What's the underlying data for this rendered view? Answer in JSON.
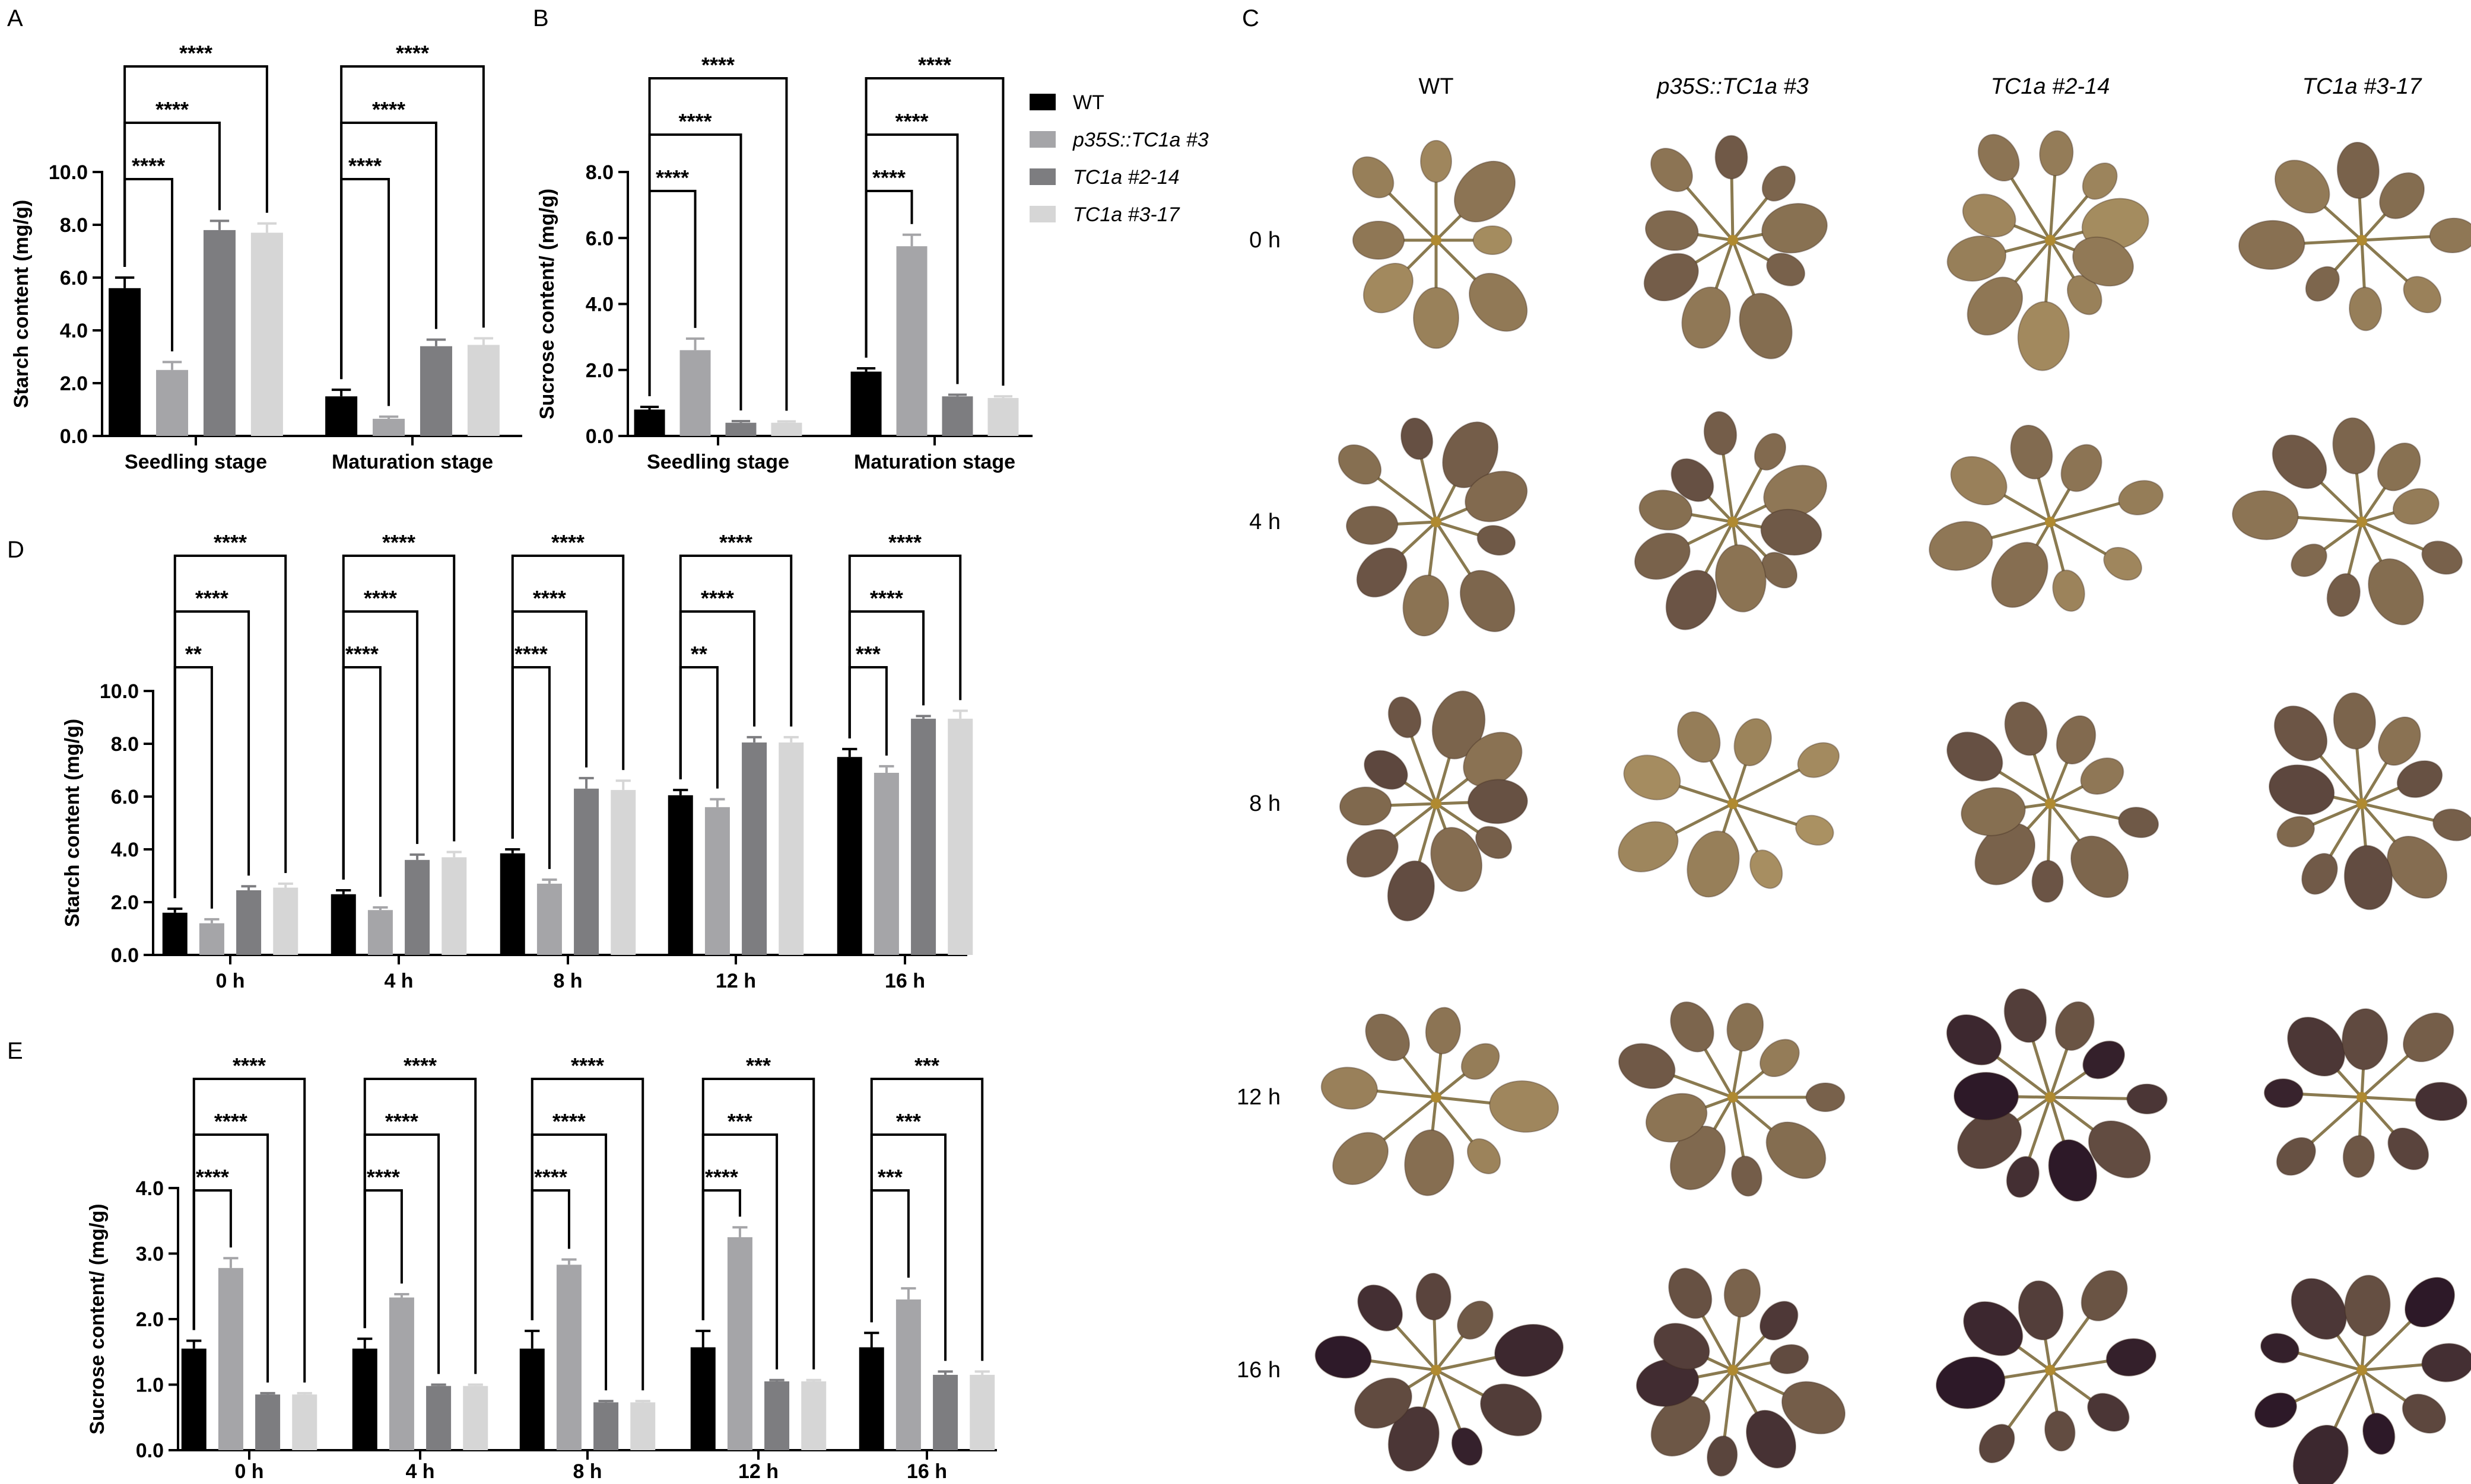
{
  "figure": {
    "legend": {
      "entries": [
        {
          "label": "WT",
          "color": "#000000",
          "italic": false
        },
        {
          "label": "p35S::TC1a #3",
          "color": "#a5a5a8",
          "italic": true
        },
        {
          "label": "TC1a #2-14",
          "color": "#7d7d80",
          "italic": true
        },
        {
          "label": "TC1a #3-17",
          "color": "#d6d6d6",
          "italic": true
        }
      ]
    },
    "panel_c": {
      "letter": "C",
      "columns": [
        "WT",
        "p35S::TC1a #3",
        "TC1a #2-14",
        "TC1a #3-17"
      ],
      "rows": [
        "0 h",
        "4 h",
        "8 h",
        "12 h",
        "16 h"
      ],
      "stain": [
        [
          0.3,
          0.45,
          0.3,
          0.4
        ],
        [
          0.5,
          0.5,
          0.35,
          0.45
        ],
        [
          0.55,
          0.25,
          0.5,
          0.55
        ],
        [
          0.35,
          0.45,
          0.85,
          0.75
        ],
        [
          0.8,
          0.7,
          0.85,
          0.9
        ]
      ]
    }
  },
  "chart_data": [
    {
      "id": "A",
      "letter": "A",
      "type": "bar",
      "ylabel": "Starch content (mg/g)",
      "ylim": [
        0,
        10
      ],
      "yticks": [
        "0.0",
        "2.0",
        "4.0",
        "6.0",
        "8.0",
        "10.0"
      ],
      "categories": [
        "Seedling stage",
        "Maturation stage"
      ],
      "series": [
        {
          "values": [
            5.6,
            1.5
          ],
          "errors": [
            0.4,
            0.25
          ]
        },
        {
          "values": [
            2.5,
            0.65
          ],
          "errors": [
            0.3,
            0.08
          ]
        },
        {
          "values": [
            7.8,
            3.4
          ],
          "errors": [
            0.35,
            0.25
          ]
        },
        {
          "values": [
            7.7,
            3.45
          ],
          "errors": [
            0.35,
            0.25
          ]
        }
      ],
      "significance": [
        {
          "category": 0,
          "target": 1,
          "label": "****"
        },
        {
          "category": 0,
          "target": 2,
          "label": "****"
        },
        {
          "category": 0,
          "target": 3,
          "label": "****"
        },
        {
          "category": 1,
          "target": 1,
          "label": "****"
        },
        {
          "category": 1,
          "target": 2,
          "label": "****"
        },
        {
          "category": 1,
          "target": 3,
          "label": "****"
        }
      ]
    },
    {
      "id": "B",
      "letter": "B",
      "type": "bar",
      "ylabel": "Sucrose content/ (mg/g)",
      "ylim": [
        0,
        8
      ],
      "yticks": [
        "0.0",
        "2.0",
        "4.0",
        "6.0",
        "8.0"
      ],
      "categories": [
        "Seedling stage",
        "Maturation stage"
      ],
      "series": [
        {
          "values": [
            0.8,
            1.95
          ],
          "errors": [
            0.08,
            0.1
          ]
        },
        {
          "values": [
            2.6,
            5.75
          ],
          "errors": [
            0.35,
            0.35
          ]
        },
        {
          "values": [
            0.4,
            1.2
          ],
          "errors": [
            0.05,
            0.05
          ]
        },
        {
          "values": [
            0.4,
            1.15
          ],
          "errors": [
            0.04,
            0.05
          ]
        }
      ],
      "significance": [
        {
          "category": 0,
          "target": 1,
          "label": "****"
        },
        {
          "category": 0,
          "target": 2,
          "label": "****"
        },
        {
          "category": 0,
          "target": 3,
          "label": "****"
        },
        {
          "category": 1,
          "target": 1,
          "label": "****"
        },
        {
          "category": 1,
          "target": 2,
          "label": "****"
        },
        {
          "category": 1,
          "target": 3,
          "label": "****"
        }
      ]
    },
    {
      "id": "D",
      "letter": "D",
      "type": "bar",
      "ylabel": "Starch content (mg/g)",
      "ylim": [
        0,
        10
      ],
      "yticks": [
        "0.0",
        "2.0",
        "4.0",
        "6.0",
        "8.0",
        "10.0"
      ],
      "categories": [
        "0 h",
        "4 h",
        "8 h",
        "12 h",
        "16 h"
      ],
      "series": [
        {
          "values": [
            1.6,
            2.3,
            3.85,
            6.05,
            7.5
          ],
          "errors": [
            0.15,
            0.15,
            0.15,
            0.2,
            0.3
          ]
        },
        {
          "values": [
            1.2,
            1.7,
            2.7,
            5.6,
            6.9
          ],
          "errors": [
            0.15,
            0.1,
            0.15,
            0.3,
            0.25
          ]
        },
        {
          "values": [
            2.45,
            3.6,
            6.3,
            8.05,
            8.95
          ],
          "errors": [
            0.15,
            0.2,
            0.4,
            0.2,
            0.1
          ]
        },
        {
          "values": [
            2.55,
            3.7,
            6.25,
            8.05,
            8.95
          ],
          "errors": [
            0.15,
            0.2,
            0.35,
            0.2,
            0.3
          ]
        }
      ],
      "significance": [
        {
          "category": 0,
          "target": 1,
          "label": "**"
        },
        {
          "category": 0,
          "target": 2,
          "label": "****"
        },
        {
          "category": 0,
          "target": 3,
          "label": "****"
        },
        {
          "category": 1,
          "target": 1,
          "label": "****"
        },
        {
          "category": 1,
          "target": 2,
          "label": "****"
        },
        {
          "category": 1,
          "target": 3,
          "label": "****"
        },
        {
          "category": 2,
          "target": 1,
          "label": "****"
        },
        {
          "category": 2,
          "target": 2,
          "label": "****"
        },
        {
          "category": 2,
          "target": 3,
          "label": "****"
        },
        {
          "category": 3,
          "target": 1,
          "label": "**"
        },
        {
          "category": 3,
          "target": 2,
          "label": "****"
        },
        {
          "category": 3,
          "target": 3,
          "label": "****"
        },
        {
          "category": 4,
          "target": 1,
          "label": "***"
        },
        {
          "category": 4,
          "target": 2,
          "label": "****"
        },
        {
          "category": 4,
          "target": 3,
          "label": "****"
        }
      ]
    },
    {
      "id": "E",
      "letter": "E",
      "type": "bar",
      "ylabel": "Sucrose content/ (mg/g)",
      "ylim": [
        0,
        4
      ],
      "yticks": [
        "0.0",
        "1.0",
        "2.0",
        "3.0",
        "4.0"
      ],
      "categories": [
        "0 h",
        "4 h",
        "8 h",
        "12 h",
        "16 h"
      ],
      "series": [
        {
          "values": [
            1.55,
            1.55,
            1.55,
            1.57,
            1.57
          ],
          "errors": [
            0.12,
            0.15,
            0.27,
            0.25,
            0.22
          ]
        },
        {
          "values": [
            2.78,
            2.33,
            2.83,
            3.25,
            2.3
          ],
          "errors": [
            0.15,
            0.05,
            0.08,
            0.15,
            0.17
          ]
        },
        {
          "values": [
            0.85,
            0.98,
            0.73,
            1.05,
            1.15
          ],
          "errors": [
            0.02,
            0.02,
            0.02,
            0.02,
            0.05
          ]
        },
        {
          "values": [
            0.85,
            0.98,
            0.73,
            1.05,
            1.15
          ],
          "errors": [
            0.02,
            0.02,
            0.02,
            0.02,
            0.05
          ]
        }
      ],
      "significance": [
        {
          "category": 0,
          "target": 1,
          "label": "****"
        },
        {
          "category": 0,
          "target": 2,
          "label": "****"
        },
        {
          "category": 0,
          "target": 3,
          "label": "****"
        },
        {
          "category": 1,
          "target": 1,
          "label": "****"
        },
        {
          "category": 1,
          "target": 2,
          "label": "****"
        },
        {
          "category": 1,
          "target": 3,
          "label": "****"
        },
        {
          "category": 2,
          "target": 1,
          "label": "****"
        },
        {
          "category": 2,
          "target": 2,
          "label": "****"
        },
        {
          "category": 2,
          "target": 3,
          "label": "****"
        },
        {
          "category": 3,
          "target": 1,
          "label": "****"
        },
        {
          "category": 3,
          "target": 2,
          "label": "***"
        },
        {
          "category": 3,
          "target": 3,
          "label": "***"
        },
        {
          "category": 4,
          "target": 1,
          "label": "***"
        },
        {
          "category": 4,
          "target": 2,
          "label": "***"
        },
        {
          "category": 4,
          "target": 3,
          "label": "***"
        }
      ]
    }
  ]
}
